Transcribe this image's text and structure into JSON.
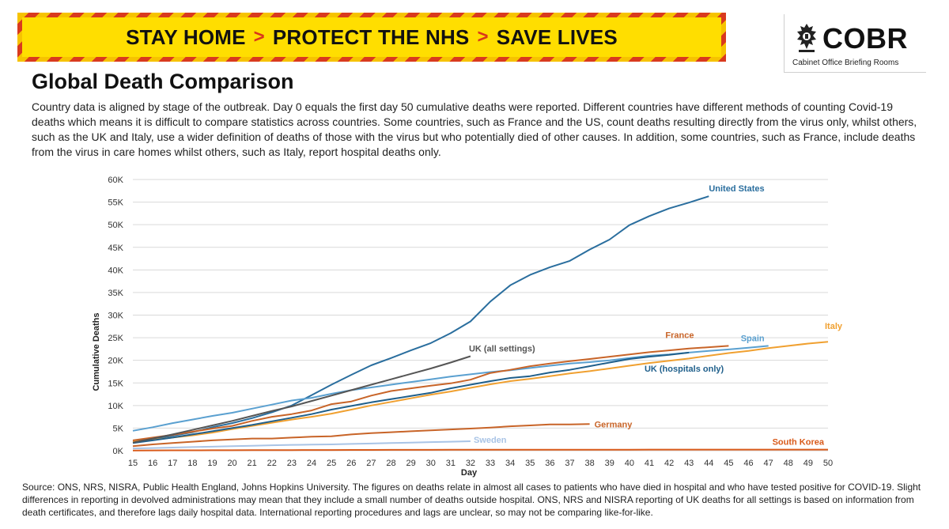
{
  "banner": {
    "part1": "STAY HOME",
    "part2": "PROTECT THE NHS",
    "part3": "SAVE LIVES",
    "separator": ">"
  },
  "logo": {
    "name": "COBR",
    "subtitle": "Cabinet Office Briefing Rooms"
  },
  "title": "Global Death Comparison",
  "intro": "Country data is aligned by stage of the outbreak. Day 0 equals the first day 50 cumulative deaths were reported. Different countries have different methods of counting Covid-19 deaths which means it is difficult to compare statistics across countries. Some countries, such as France and the US, count deaths resulting directly from the virus only, whilst others, such as the UK and Italy, use a wider definition of deaths of those with the virus but who potentially died of other causes. In addition, some countries, such as France, include deaths from the virus in care homes whilst others, such as Italy, report hospital deaths only.",
  "source": "Source: ONS, NRS, NISRA, Public Health England, Johns Hopkins University. The figures on deaths relate in almost all cases to patients who have died in hospital and who have tested positive for COVID-19. Slight differences in reporting in devolved administrations may mean that they include a small number of deaths outside hospital. ONS, NRS and NISRA reporting of UK deaths for all settings is based on information from death certificates, and therefore lags daily hospital data. International reporting procedures and lags are unclear, so may not be comparing like-for-like.",
  "chart_data": {
    "type": "line",
    "xlabel": "Day",
    "ylabel": "Cumulative Deaths",
    "xlim": [
      15,
      50
    ],
    "ylim": [
      0,
      60000
    ],
    "x_ticks": [
      "15",
      "16",
      "17",
      "18",
      "19",
      "20",
      "21",
      "22",
      "23",
      "24",
      "25",
      "26",
      "27",
      "28",
      "29",
      "30",
      "31",
      "32",
      "33",
      "34",
      "35",
      "36",
      "37",
      "38",
      "39",
      "40",
      "41",
      "42",
      "43",
      "44",
      "45",
      "46",
      "47",
      "48",
      "49",
      "50"
    ],
    "y_ticks": [
      {
        "value": 0,
        "label": "0K"
      },
      {
        "value": 5000,
        "label": "5K"
      },
      {
        "value": 10000,
        "label": "10K"
      },
      {
        "value": 15000,
        "label": "15K"
      },
      {
        "value": 20000,
        "label": "20K"
      },
      {
        "value": 25000,
        "label": "25K"
      },
      {
        "value": 30000,
        "label": "30K"
      },
      {
        "value": 35000,
        "label": "35K"
      },
      {
        "value": 40000,
        "label": "40K"
      },
      {
        "value": 45000,
        "label": "45K"
      },
      {
        "value": 50000,
        "label": "50K"
      },
      {
        "value": 55000,
        "label": "55K"
      },
      {
        "value": 60000,
        "label": "60K"
      }
    ],
    "grid": "horizontal",
    "series": [
      {
        "name": "United States",
        "color": "#2a6e9e",
        "x_start": 15,
        "values": [
          2100,
          2600,
          3300,
          4100,
          5200,
          6100,
          7200,
          8500,
          10000,
          12300,
          14600,
          16800,
          18900,
          20500,
          22200,
          23800,
          26000,
          28600,
          33000,
          36600,
          38900,
          40600,
          42000,
          44500,
          46700,
          49900,
          51900,
          53600,
          54900,
          56300
        ]
      },
      {
        "name": "Spain",
        "color": "#5aa0d0",
        "x_start": 15,
        "values": [
          4400,
          5200,
          6100,
          6900,
          7700,
          8400,
          9300,
          10200,
          11100,
          11700,
          12600,
          13400,
          14000,
          14600,
          15200,
          15800,
          16400,
          16900,
          17400,
          17800,
          18300,
          18800,
          19300,
          19600,
          20000,
          20500,
          21000,
          21300,
          21700,
          22100,
          22400,
          22800,
          23200
        ]
      },
      {
        "name": "Italy",
        "color": "#f0a030",
        "x_start": 15,
        "values": [
          2000,
          2400,
          2900,
          3400,
          4000,
          4800,
          5500,
          6200,
          6900,
          7500,
          8200,
          9100,
          10000,
          10800,
          11600,
          12400,
          13100,
          13900,
          14700,
          15400,
          15900,
          16500,
          17100,
          17600,
          18200,
          18800,
          19400,
          19900,
          20400,
          21000,
          21600,
          22100,
          22700,
          23200,
          23700,
          24100
        ]
      },
      {
        "name": "France",
        "color": "#c86428",
        "x_start": 15,
        "values": [
          2300,
          2900,
          3500,
          4200,
          4900,
          5500,
          6600,
          7500,
          8100,
          8900,
          10300,
          10900,
          12200,
          13200,
          13800,
          14400,
          14900,
          15700,
          17200,
          17900,
          18700,
          19300,
          19800,
          20300,
          20800,
          21300,
          21800,
          22200,
          22600,
          22900,
          23200
        ]
      },
      {
        "name": "UK (hospitals only)",
        "color": "#1f5f8b",
        "x_start": 15,
        "values": [
          1700,
          2300,
          2900,
          3600,
          4300,
          5000,
          5700,
          6500,
          7300,
          8100,
          9100,
          9900,
          10700,
          11400,
          12100,
          12800,
          13800,
          14600,
          15400,
          16100,
          16500,
          17300,
          17900,
          18700,
          19500,
          20300,
          20800,
          21200,
          21700
        ]
      },
      {
        "name": "UK (all settings)",
        "color": "#555555",
        "x_start": 15,
        "values": [
          1800,
          2700,
          3600,
          4600,
          5600,
          6600,
          7700,
          8800,
          9800,
          11000,
          12200,
          13400,
          14600,
          15800,
          17000,
          18200,
          19500,
          20900
        ]
      },
      {
        "name": "Germany",
        "color": "#c86428",
        "x_start": 15,
        "values": [
          1000,
          1400,
          1700,
          2000,
          2300,
          2500,
          2700,
          2700,
          2900,
          3100,
          3200,
          3600,
          3900,
          4100,
          4300,
          4500,
          4700,
          4900,
          5100,
          5400,
          5600,
          5800,
          5800,
          5900
        ]
      },
      {
        "name": "Sweden",
        "color": "#a9c4e6",
        "x_start": 15,
        "values": [
          500,
          600,
          700,
          800,
          900,
          1000,
          1100,
          1200,
          1300,
          1350,
          1400,
          1500,
          1600,
          1700,
          1800,
          1900,
          2000,
          2100
        ]
      },
      {
        "name": "South Korea",
        "color": "#d95a1a",
        "x_start": 15,
        "values": [
          60,
          70,
          80,
          90,
          100,
          110,
          120,
          130,
          140,
          150,
          160,
          170,
          180,
          190,
          200,
          200,
          210,
          210,
          210,
          220,
          220,
          220,
          230,
          230,
          230,
          230,
          240,
          240,
          240,
          240,
          240,
          240,
          240,
          250,
          250,
          250
        ]
      }
    ]
  }
}
